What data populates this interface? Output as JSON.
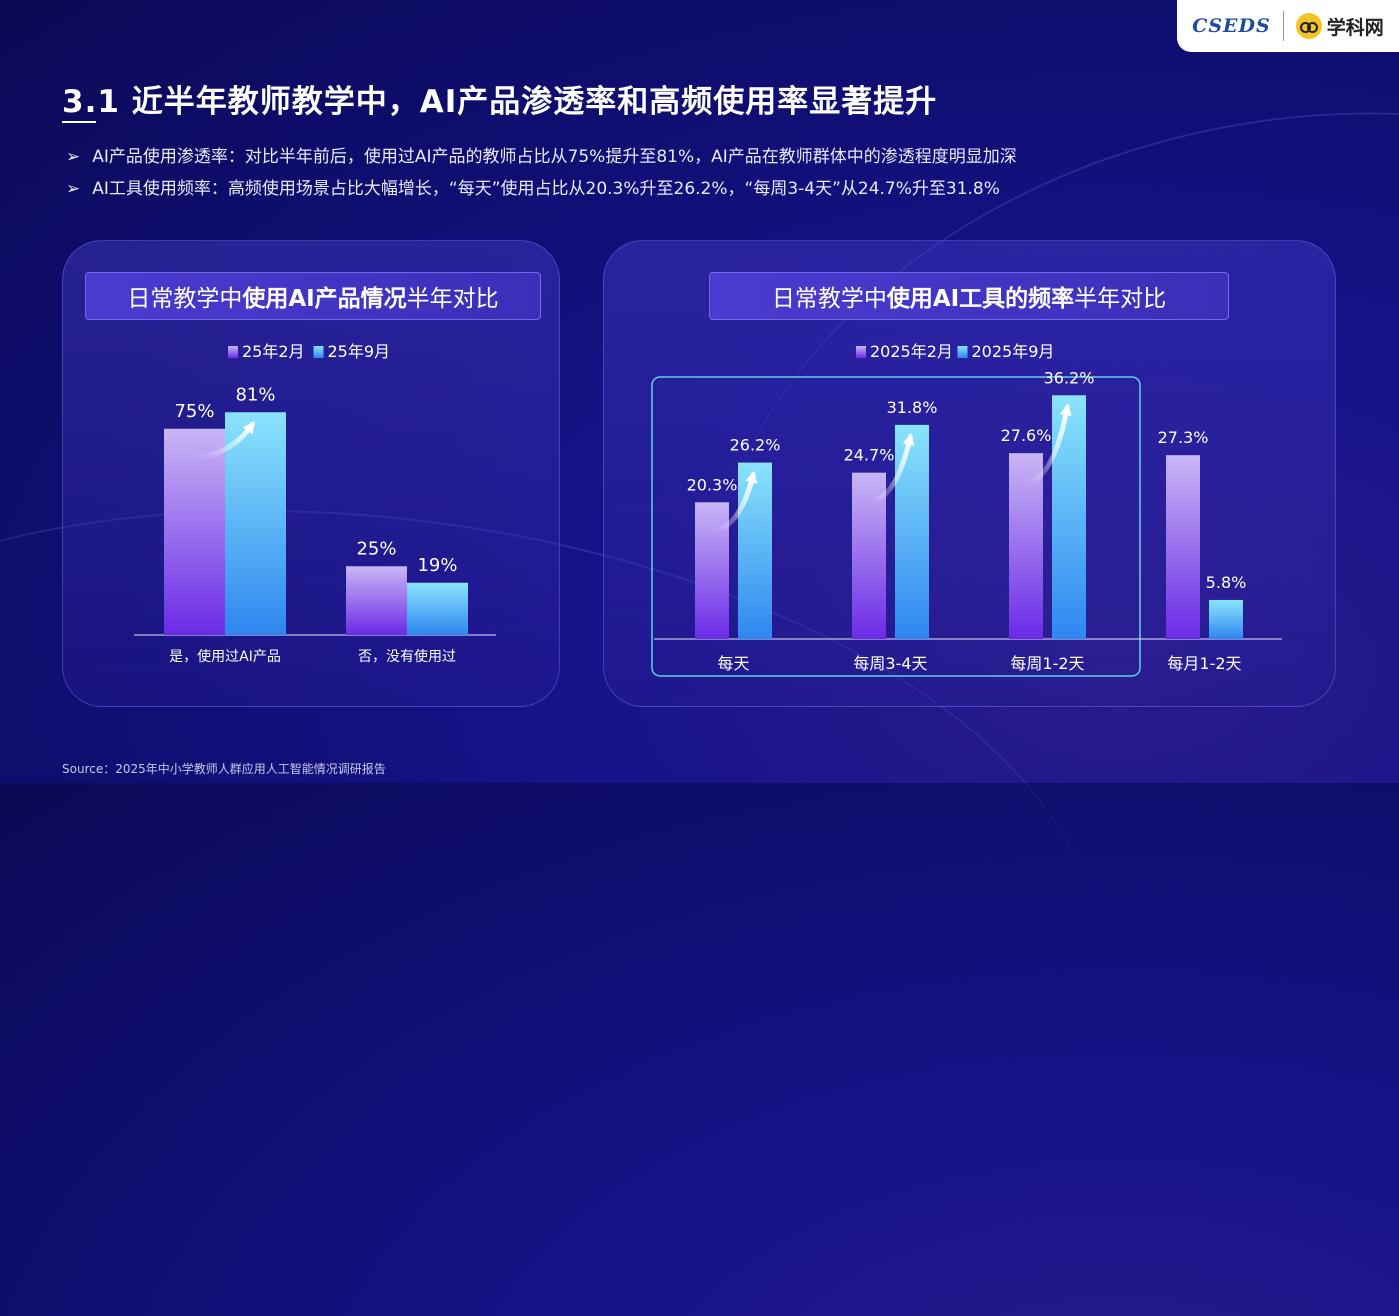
{
  "logo": {
    "seds": "CSEDS",
    "xueke": "学科网"
  },
  "title": "3.1 近半年教师教学中，AI产品渗透率和高频使用率显著提升",
  "bullets": [
    "AI产品使用渗透率：对比半年前后，使用过AI产品的教师占比从75%提升至81%，AI产品在教师群体中的渗透程度明显加深",
    "AI工具使用频率：高频使用场景占比大幅增长，“每天”使用占比从20.3%升至26.2%，“每周3-4天”从24.7%升至31.8%"
  ],
  "bullet_marker": "➢",
  "left_panel": {
    "title_plain_1": "日常教学中",
    "title_bold": "使用AI产品情况",
    "title_plain_2": "半年对比"
  },
  "right_panel": {
    "title_plain_1": "日常教学中",
    "title_bold": "使用AI工具的频率",
    "title_plain_2": "半年对比"
  },
  "source": "Source：2025年中小学教师人群应用人工智能情况调研报告",
  "colors": {
    "series_a": "#8b5cf6",
    "series_b": "#38bdf8",
    "highlight_border": "#5fd0e8"
  },
  "chart_data": [
    {
      "type": "bar",
      "categories": [
        "是，使用过AI产品",
        "否，没有使用过"
      ],
      "series": [
        {
          "name": "25年2月",
          "values": [
            75,
            25
          ],
          "labels": [
            "75%",
            "25%"
          ]
        },
        {
          "name": "25年9月",
          "values": [
            81,
            19
          ],
          "labels": [
            "81%",
            "19%"
          ]
        }
      ],
      "ylim": [
        0,
        100
      ],
      "legend": "top-center"
    },
    {
      "type": "bar",
      "categories": [
        "每天",
        "每周3-4天",
        "每周1-2天",
        "每月1-2天"
      ],
      "series": [
        {
          "name": "2025年2月",
          "values": [
            20.3,
            24.7,
            27.6,
            27.3
          ],
          "labels": [
            "20.3%",
            "24.7%",
            "27.6%",
            "27.3%"
          ]
        },
        {
          "name": "2025年9月",
          "values": [
            26.2,
            31.8,
            36.2,
            5.8
          ],
          "labels": [
            "26.2%",
            "31.8%",
            "36.2%",
            "5.8%"
          ]
        }
      ],
      "ylim": [
        0,
        45
      ],
      "legend": "top-center",
      "highlighted_categories": [
        "每天",
        "每周3-4天",
        "每周1-2天"
      ]
    }
  ]
}
